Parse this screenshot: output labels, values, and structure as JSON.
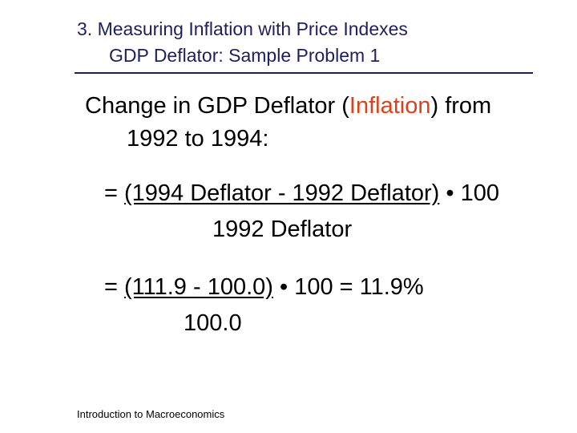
{
  "title": {
    "line1": "3.  Measuring Inflation with Price Indexes",
    "line2": "GDP Deflator: Sample Problem 1"
  },
  "colors": {
    "title": "#1f1f5c",
    "accent": "#d9421a",
    "text": "#000000"
  },
  "body": {
    "intro": {
      "pre": "Change in GDP Deflator (",
      "highlight": "Inflation",
      "post": ") from"
    },
    "intro_line2": "1992 to 1994:",
    "formula": {
      "equals": "= ",
      "numerator": "(1994 Deflator - 1992 Deflator)",
      "multiplier": " • 100",
      "denominator": "1992 Deflator"
    },
    "calculation": {
      "equals": "= ",
      "numerator": "(111.9 - 100.0)",
      "rest": " • 100 = 11.9%",
      "denominator": "100.0"
    }
  },
  "footer": "Introduction to Macroeconomics"
}
